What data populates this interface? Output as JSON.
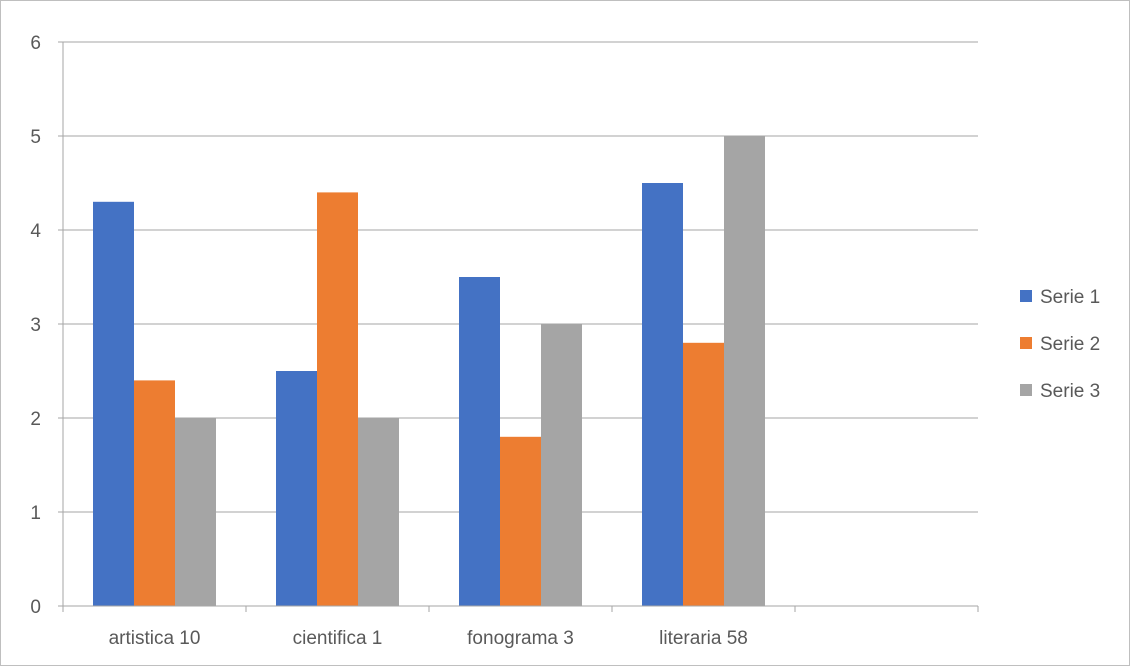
{
  "chart_data": {
    "type": "bar",
    "title": "",
    "xlabel": "",
    "ylabel": "",
    "categories": [
      "artistica 10",
      "cientifica 1",
      "fonograma 3",
      "literaria 58",
      ""
    ],
    "series": [
      {
        "name": "Serie 1",
        "color": "#4472c4",
        "values": [
          4.3,
          2.5,
          3.5,
          4.5,
          null
        ]
      },
      {
        "name": "Serie 2",
        "color": "#ed7d31",
        "values": [
          2.4,
          4.4,
          1.8,
          2.8,
          null
        ]
      },
      {
        "name": "Serie 3",
        "color": "#a5a5a5",
        "values": [
          2.0,
          2.0,
          3.0,
          5.0,
          null
        ]
      }
    ],
    "ylim": [
      0,
      6
    ],
    "yticks": [
      0,
      1,
      2,
      3,
      4,
      5,
      6
    ],
    "grid": true,
    "legend_position": "right"
  }
}
